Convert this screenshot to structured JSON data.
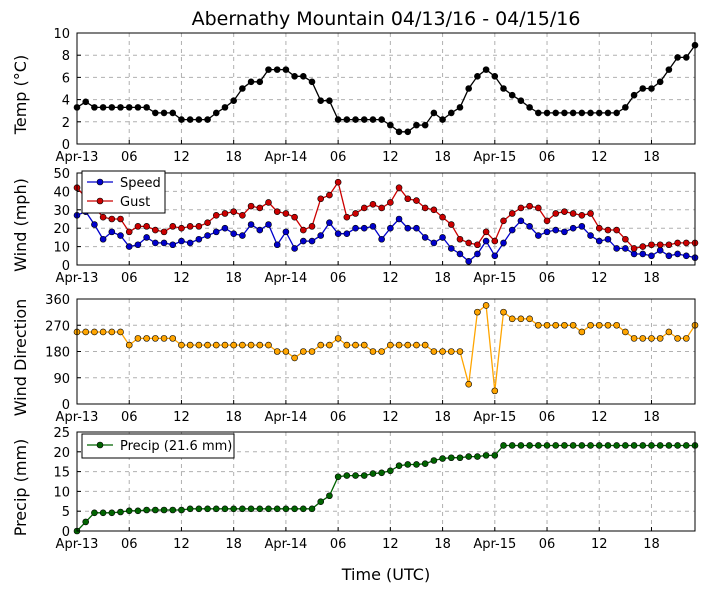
{
  "title": "Abernathy Mountain 04/13/16 - 04/15/16",
  "xlabel": "Time (UTC)",
  "x_tick_labels": [
    "Apr-13",
    "06",
    "12",
    "18",
    "Apr-14",
    "06",
    "12",
    "18",
    "Apr-15",
    "06",
    "12",
    "18"
  ],
  "x_tick_hours": [
    0,
    6,
    12,
    18,
    24,
    30,
    36,
    42,
    48,
    54,
    60,
    66
  ],
  "x_range_hours": [
    0,
    71
  ],
  "chart_data": [
    {
      "type": "line",
      "ylabel": "Temp (°C)",
      "ylim": [
        0,
        10
      ],
      "yticks": [
        0,
        2,
        4,
        6,
        8,
        10
      ],
      "grid": true,
      "series": [
        {
          "color": "#000000",
          "x": [
            0,
            1,
            2,
            3,
            4,
            5,
            6,
            7,
            8,
            9,
            10,
            11,
            12,
            13,
            14,
            15,
            16,
            17,
            18,
            19,
            20,
            21,
            22,
            23,
            24,
            25,
            26,
            27,
            28,
            29,
            30,
            31,
            32,
            33,
            34,
            35,
            36,
            37,
            38,
            39,
            40,
            41,
            42,
            43,
            44,
            45,
            46,
            47,
            48,
            49,
            50,
            51,
            52,
            53,
            54,
            55,
            56,
            57,
            58,
            59,
            60,
            61,
            62,
            63,
            64,
            65,
            66,
            67,
            68,
            69,
            70,
            71
          ],
          "values": [
            3.3,
            3.8,
            3.3,
            3.3,
            3.3,
            3.3,
            3.3,
            3.3,
            3.3,
            2.8,
            2.8,
            2.8,
            2.2,
            2.2,
            2.2,
            2.2,
            2.8,
            3.3,
            3.9,
            5.0,
            5.6,
            5.6,
            6.7,
            6.7,
            6.7,
            6.1,
            6.1,
            5.6,
            3.9,
            3.9,
            2.2,
            2.2,
            2.2,
            2.2,
            2.2,
            2.2,
            1.7,
            1.1,
            1.1,
            1.7,
            1.7,
            2.8,
            2.2,
            2.8,
            3.3,
            5.0,
            6.1,
            6.7,
            6.1,
            5.0,
            4.4,
            3.9,
            3.3,
            2.8,
            2.8,
            2.8,
            2.8,
            2.8,
            2.8,
            2.8,
            2.8,
            2.8,
            2.8,
            3.3,
            4.4,
            5.0,
            5.0,
            5.6,
            6.7,
            7.8,
            7.8,
            8.9
          ]
        }
      ]
    },
    {
      "type": "line",
      "ylabel": "Wind (mph)",
      "ylim": [
        0,
        50
      ],
      "yticks": [
        0,
        10,
        20,
        30,
        40,
        50
      ],
      "grid": true,
      "legend": "top-left",
      "series": [
        {
          "name": "Speed",
          "color": "#0000cc",
          "x": [
            0,
            1,
            2,
            3,
            4,
            5,
            6,
            7,
            8,
            9,
            10,
            11,
            12,
            13,
            14,
            15,
            16,
            17,
            18,
            19,
            20,
            21,
            22,
            23,
            24,
            25,
            26,
            27,
            28,
            29,
            30,
            31,
            32,
            33,
            34,
            35,
            36,
            37,
            38,
            39,
            40,
            41,
            42,
            43,
            44,
            45,
            46,
            47,
            48,
            49,
            50,
            51,
            52,
            53,
            54,
            55,
            56,
            57,
            58,
            59,
            60,
            61,
            62,
            63,
            64,
            65,
            66,
            67,
            68,
            69,
            70,
            71
          ],
          "values": [
            27,
            29,
            22,
            14,
            18,
            16,
            10,
            11,
            15,
            12,
            12,
            11,
            13,
            12,
            14,
            16,
            18,
            20,
            17,
            16,
            22,
            19,
            22,
            11,
            18,
            9,
            13,
            13,
            16,
            23,
            17,
            17,
            20,
            20,
            21,
            14,
            20,
            25,
            20,
            20,
            15,
            12,
            15,
            9,
            6,
            2,
            6,
            13,
            5,
            12,
            19,
            24,
            21,
            16,
            18,
            19,
            18,
            20,
            21,
            16,
            13,
            14,
            9,
            9,
            6,
            6,
            5,
            8,
            5,
            6,
            5,
            4
          ]
        },
        {
          "name": "Gust",
          "color": "#cc0000",
          "x": [
            0,
            3,
            4,
            5,
            6,
            7,
            8,
            9,
            10,
            11,
            12,
            13,
            14,
            15,
            16,
            17,
            18,
            19,
            20,
            21,
            22,
            23,
            24,
            25,
            26,
            27,
            28,
            29,
            30,
            31,
            32,
            33,
            34,
            35,
            36,
            37,
            38,
            39,
            40,
            41,
            42,
            43,
            44,
            45,
            46,
            47,
            48,
            49,
            50,
            51,
            52,
            53,
            54,
            55,
            56,
            57,
            58,
            59,
            60,
            61,
            62,
            63,
            64,
            65,
            66,
            67,
            68,
            69,
            70,
            71
          ],
          "values": [
            42,
            26,
            25,
            25,
            18,
            21,
            21,
            19,
            18,
            21,
            20,
            21,
            21,
            23,
            27,
            28,
            29,
            27,
            32,
            31,
            34,
            29,
            28,
            26,
            19,
            21,
            36,
            38,
            45,
            26,
            28,
            31,
            33,
            31,
            34,
            42,
            36,
            35,
            31,
            30,
            26,
            22,
            14,
            12,
            11,
            18,
            13,
            24,
            28,
            31,
            32,
            31,
            24,
            28,
            29,
            28,
            27,
            28,
            20,
            19,
            19,
            14,
            9,
            10,
            11,
            11,
            11,
            12,
            12,
            12
          ]
        }
      ]
    },
    {
      "type": "scatter",
      "ylabel": "Wind Direction",
      "ylim": [
        0,
        360
      ],
      "yticks": [
        0,
        90,
        180,
        270,
        360
      ],
      "grid": true,
      "series": [
        {
          "color": "#ffa500",
          "x": [
            0,
            1,
            2,
            3,
            4,
            5,
            6,
            7,
            8,
            9,
            10,
            11,
            12,
            13,
            14,
            15,
            16,
            17,
            18,
            19,
            20,
            21,
            22,
            23,
            24,
            25,
            26,
            27,
            28,
            29,
            30,
            31,
            32,
            33,
            34,
            35,
            36,
            37,
            38,
            39,
            40,
            41,
            42,
            43,
            44,
            45,
            46,
            47,
            48,
            49,
            50,
            51,
            52,
            53,
            54,
            55,
            56,
            57,
            58,
            59,
            60,
            61,
            62,
            63,
            64,
            65,
            66,
            67,
            68,
            69,
            70,
            71
          ],
          "values": [
            247,
            247,
            247,
            247,
            247,
            247,
            202,
            225,
            225,
            225,
            225,
            225,
            202,
            202,
            202,
            202,
            202,
            202,
            202,
            202,
            202,
            202,
            202,
            180,
            180,
            158,
            180,
            180,
            202,
            202,
            225,
            202,
            202,
            202,
            180,
            180,
            202,
            202,
            202,
            202,
            202,
            180,
            180,
            180,
            180,
            68,
            315,
            338,
            45,
            315,
            292,
            292,
            292,
            270,
            270,
            270,
            270,
            270,
            247,
            270,
            270,
            270,
            270,
            247,
            225,
            225,
            225,
            225,
            247,
            225,
            225,
            270
          ]
        }
      ]
    },
    {
      "type": "line",
      "ylabel": "Precip (mm)",
      "ylim": [
        0,
        25
      ],
      "yticks": [
        0,
        5,
        10,
        15,
        20,
        25
      ],
      "grid": true,
      "legend": "top-left",
      "series": [
        {
          "name": "Precip (21.6 mm)",
          "color": "#006400",
          "x": [
            0,
            1,
            2,
            3,
            4,
            5,
            6,
            7,
            8,
            9,
            10,
            11,
            12,
            13,
            14,
            15,
            16,
            17,
            18,
            19,
            20,
            21,
            22,
            23,
            24,
            25,
            26,
            27,
            28,
            29,
            30,
            31,
            32,
            33,
            34,
            35,
            36,
            37,
            38,
            39,
            40,
            41,
            42,
            43,
            44,
            45,
            46,
            47,
            48,
            49,
            50,
            51,
            52,
            53,
            54,
            55,
            56,
            57,
            58,
            59,
            60,
            61,
            62,
            63,
            64,
            65,
            66,
            67,
            68,
            69,
            70,
            71
          ],
          "values": [
            0,
            2.3,
            4.6,
            4.6,
            4.6,
            4.8,
            5.1,
            5.1,
            5.3,
            5.3,
            5.3,
            5.3,
            5.3,
            5.6,
            5.6,
            5.6,
            5.6,
            5.6,
            5.6,
            5.6,
            5.6,
            5.6,
            5.6,
            5.6,
            5.6,
            5.6,
            5.6,
            5.6,
            7.4,
            8.9,
            13.7,
            14.0,
            14.0,
            14.0,
            14.5,
            14.7,
            15.2,
            16.5,
            16.8,
            16.8,
            17.0,
            17.8,
            18.3,
            18.5,
            18.5,
            18.8,
            18.8,
            19.1,
            19.1,
            21.6,
            21.6,
            21.6,
            21.6,
            21.6,
            21.6,
            21.6,
            21.6,
            21.6,
            21.6,
            21.6,
            21.6,
            21.6,
            21.6,
            21.6,
            21.6,
            21.6,
            21.6,
            21.6,
            21.6,
            21.6,
            21.6,
            21.6
          ]
        }
      ]
    }
  ]
}
